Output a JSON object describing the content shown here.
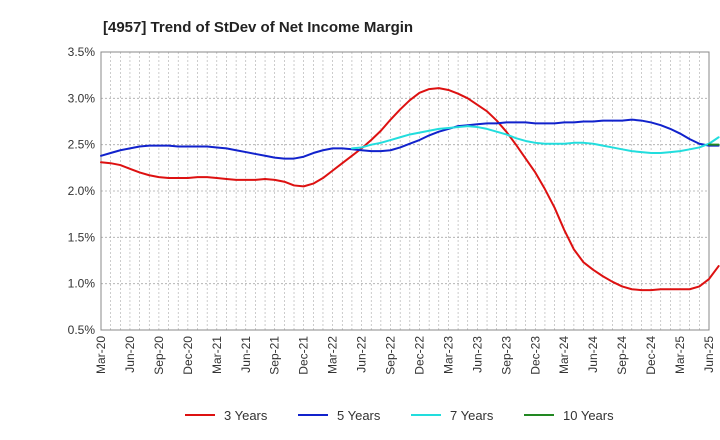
{
  "chart_data": {
    "type": "line",
    "title": "[4957]  Trend of StDev of Net Income Margin",
    "xlabel": "",
    "ylabel": "",
    "ylim": [
      0.5,
      3.5
    ],
    "y_ticks": [
      "0.5%",
      "1.0%",
      "1.5%",
      "2.0%",
      "2.5%",
      "3.0%",
      "3.5%"
    ],
    "y_tick_values": [
      0.5,
      1.0,
      1.5,
      2.0,
      2.5,
      3.0,
      3.5
    ],
    "x_ticks": [
      "Mar-20",
      "Jun-20",
      "Sep-20",
      "Dec-20",
      "Mar-21",
      "Jun-21",
      "Sep-21",
      "Dec-21",
      "Mar-22",
      "Jun-22",
      "Sep-22",
      "Dec-22",
      "Mar-23",
      "Jun-23",
      "Sep-23",
      "Dec-23",
      "Mar-24",
      "Jun-24",
      "Sep-24",
      "Dec-24",
      "Mar-25",
      "Jun-25"
    ],
    "grid": true,
    "legend_position": "bottom",
    "series": [
      {
        "name": "3 Years",
        "color": "#dd1111",
        "values": [
          2.31,
          2.3,
          2.28,
          2.24,
          2.2,
          2.17,
          2.15,
          2.14,
          2.14,
          2.14,
          2.15,
          2.15,
          2.14,
          2.13,
          2.12,
          2.12,
          2.12,
          2.13,
          2.12,
          2.1,
          2.06,
          2.05,
          2.08,
          2.14,
          2.22,
          2.3,
          2.38,
          2.46,
          2.55,
          2.65,
          2.77,
          2.88,
          2.98,
          3.06,
          3.1,
          3.11,
          3.09,
          3.05,
          3.0,
          2.93,
          2.86,
          2.76,
          2.64,
          2.5,
          2.35,
          2.2,
          2.02,
          1.82,
          1.58,
          1.37,
          1.23,
          1.15,
          1.08,
          1.02,
          0.97,
          0.94,
          0.93,
          0.93,
          0.94,
          0.94,
          0.94,
          0.94,
          0.97,
          1.05,
          1.19
        ]
      },
      {
        "name": "5 Years",
        "color": "#1122cc",
        "values": [
          2.38,
          2.41,
          2.44,
          2.46,
          2.48,
          2.49,
          2.49,
          2.49,
          2.48,
          2.48,
          2.48,
          2.48,
          2.47,
          2.46,
          2.44,
          2.42,
          2.4,
          2.38,
          2.36,
          2.35,
          2.35,
          2.37,
          2.41,
          2.44,
          2.46,
          2.46,
          2.45,
          2.44,
          2.43,
          2.43,
          2.44,
          2.47,
          2.51,
          2.55,
          2.6,
          2.64,
          2.67,
          2.7,
          2.71,
          2.72,
          2.73,
          2.73,
          2.74,
          2.74,
          2.74,
          2.73,
          2.73,
          2.73,
          2.74,
          2.74,
          2.75,
          2.75,
          2.76,
          2.76,
          2.76,
          2.77,
          2.76,
          2.74,
          2.71,
          2.67,
          2.62,
          2.56,
          2.51,
          2.49,
          2.49
        ]
      },
      {
        "name": "7 Years",
        "color": "#22dddd",
        "values": [
          null,
          null,
          null,
          null,
          null,
          null,
          null,
          null,
          null,
          null,
          null,
          null,
          null,
          null,
          null,
          null,
          null,
          null,
          null,
          null,
          null,
          null,
          null,
          null,
          null,
          null,
          2.46,
          2.47,
          2.5,
          2.52,
          2.55,
          2.58,
          2.61,
          2.63,
          2.65,
          2.67,
          2.68,
          2.69,
          2.7,
          2.69,
          2.67,
          2.64,
          2.61,
          2.57,
          2.54,
          2.52,
          2.51,
          2.51,
          2.51,
          2.52,
          2.52,
          2.51,
          2.49,
          2.47,
          2.45,
          2.43,
          2.42,
          2.41,
          2.41,
          2.42,
          2.43,
          2.45,
          2.47,
          2.51,
          2.58
        ]
      },
      {
        "name": "10 Years",
        "color": "#228822",
        "values": [
          null,
          null,
          null,
          null,
          null,
          null,
          null,
          null,
          null,
          null,
          null,
          null,
          null,
          null,
          null,
          null,
          null,
          null,
          null,
          null,
          null,
          null,
          null,
          null,
          null,
          null,
          null,
          null,
          null,
          null,
          null,
          null,
          null,
          null,
          null,
          null,
          null,
          null,
          null,
          null,
          null,
          null,
          null,
          null,
          null,
          null,
          null,
          null,
          null,
          null,
          null,
          null,
          null,
          null,
          null,
          null,
          null,
          null,
          null,
          null,
          null,
          null,
          null,
          2.5,
          2.5
        ]
      }
    ]
  }
}
